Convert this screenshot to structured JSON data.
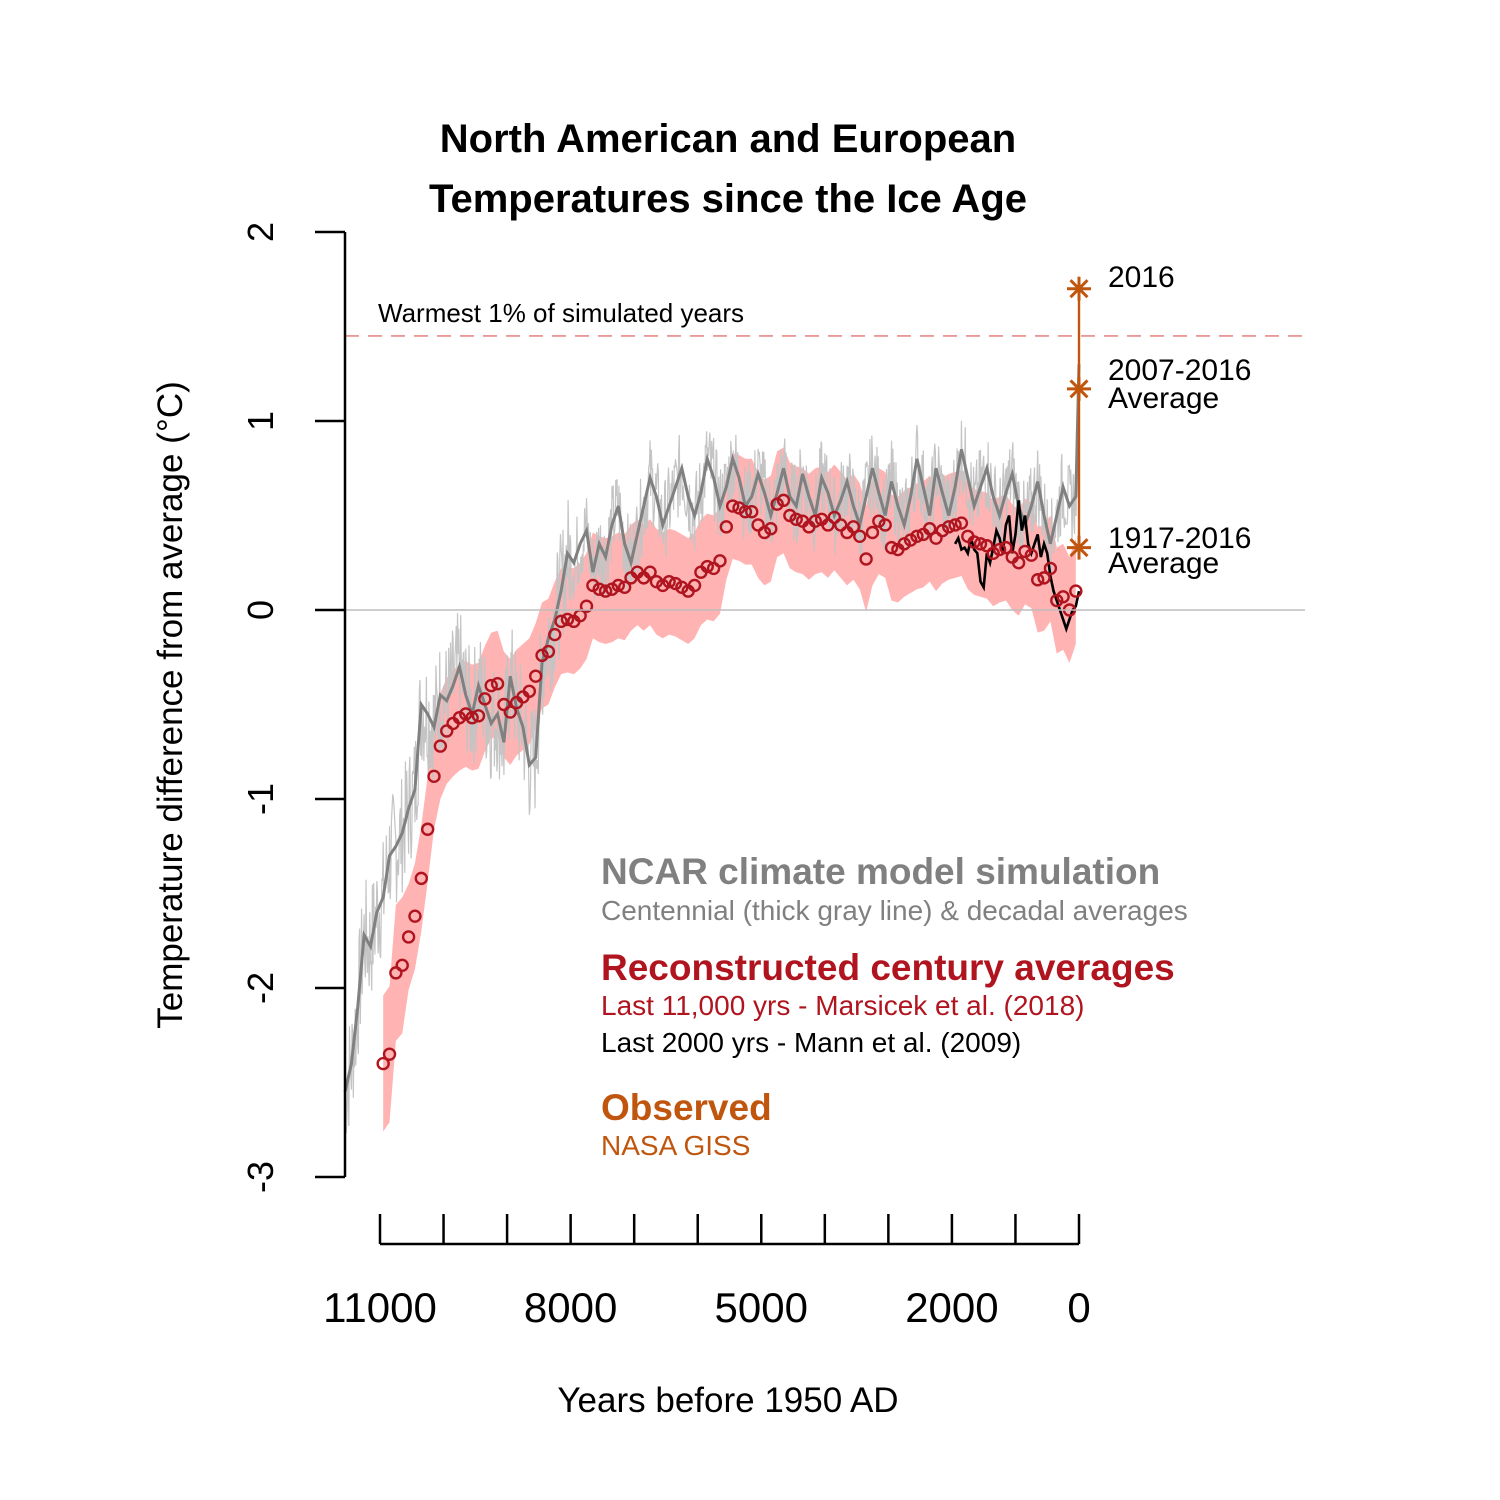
{
  "colors": {
    "model": "#808080",
    "model_decadal": "#c4c4c4",
    "recon": "#b0151f",
    "recon_band": "#ffb3b3",
    "mann": "#000000",
    "observed": "#c0560e",
    "threshold": "#e88a8a",
    "zero_line": "#bdbdbd"
  },
  "chart_data": {
    "type": "line",
    "title_lines": [
      "North American and European",
      "Temperatures since the Ice Age"
    ],
    "xlabel": "Years before 1950 AD",
    "ylabel": "Temperature difference from average (°C)",
    "x_reversed": true,
    "xlim": [
      11000,
      0
    ],
    "ylim": [
      -3,
      2
    ],
    "x_ticks": [
      11000,
      10000,
      9000,
      8000,
      7000,
      6000,
      5000,
      4000,
      3000,
      2000,
      1000,
      0
    ],
    "x_tick_labels": [
      "11000",
      "8000",
      "5000",
      "2000",
      "0"
    ],
    "x_tick_label_values": [
      11000,
      8000,
      5000,
      2000,
      0
    ],
    "y_ticks": [
      -3,
      -2,
      -1,
      0,
      1,
      2
    ],
    "y_tick_labels": [
      "-3",
      "-2",
      "-1",
      "0",
      "1",
      "2"
    ],
    "reference_lines": [
      {
        "y": 1.45,
        "style": "dashed",
        "label": "Warmest 1% of simulated years"
      },
      {
        "y": 0,
        "style": "solid",
        "label": ""
      }
    ],
    "series": [
      {
        "name": "NCAR climate model simulation",
        "kind": "centennial",
        "x": [
          11550,
          11450,
          11350,
          11250,
          11150,
          11050,
          10950,
          10850,
          10750,
          10650,
          10550,
          10450,
          10350,
          10250,
          10150,
          10050,
          9950,
          9850,
          9750,
          9650,
          9550,
          9450,
          9350,
          9250,
          9150,
          9050,
          8950,
          8850,
          8750,
          8650,
          8550,
          8450,
          8350,
          8250,
          8150,
          8050,
          7950,
          7850,
          7750,
          7650,
          7550,
          7450,
          7350,
          7250,
          7150,
          7050,
          6950,
          6850,
          6750,
          6650,
          6550,
          6450,
          6350,
          6250,
          6150,
          6050,
          5950,
          5850,
          5750,
          5650,
          5550,
          5450,
          5350,
          5250,
          5150,
          5050,
          4950,
          4850,
          4750,
          4650,
          4550,
          4450,
          4350,
          4250,
          4150,
          4050,
          3950,
          3850,
          3750,
          3650,
          3550,
          3450,
          3350,
          3250,
          3150,
          3050,
          2950,
          2850,
          2750,
          2650,
          2550,
          2450,
          2350,
          2250,
          2150,
          2050,
          1950,
          1850,
          1750,
          1650,
          1550,
          1450,
          1350,
          1250,
          1150,
          1050,
          950,
          850,
          750,
          650,
          550,
          450,
          350,
          250,
          150,
          50,
          0
        ],
        "values": [
          -2.55,
          -2.4,
          -2.1,
          -1.72,
          -1.78,
          -1.6,
          -1.52,
          -1.3,
          -1.25,
          -1.18,
          -1.05,
          -0.95,
          -0.5,
          -0.55,
          -0.62,
          -0.45,
          -0.48,
          -0.4,
          -0.3,
          -0.45,
          -0.55,
          -0.4,
          -0.5,
          -0.6,
          -0.55,
          -0.7,
          -0.35,
          -0.52,
          -0.62,
          -0.82,
          -0.78,
          -0.28,
          -0.15,
          -0.05,
          0.1,
          0.3,
          0.25,
          0.35,
          0.42,
          0.2,
          0.35,
          0.28,
          0.45,
          0.55,
          0.35,
          0.25,
          0.4,
          0.55,
          0.7,
          0.6,
          0.45,
          0.55,
          0.65,
          0.75,
          0.6,
          0.5,
          0.62,
          0.8,
          0.7,
          0.55,
          0.65,
          0.8,
          0.7,
          0.55,
          0.6,
          0.72,
          0.62,
          0.5,
          0.62,
          0.75,
          0.6,
          0.55,
          0.72,
          0.6,
          0.5,
          0.7,
          0.62,
          0.5,
          0.58,
          0.68,
          0.55,
          0.45,
          0.6,
          0.75,
          0.62,
          0.5,
          0.68,
          0.55,
          0.45,
          0.6,
          0.8,
          0.65,
          0.5,
          0.75,
          0.62,
          0.5,
          0.65,
          0.85,
          0.7,
          0.55,
          0.65,
          0.75,
          0.6,
          0.5,
          0.62,
          0.72,
          0.55,
          0.45,
          0.55,
          0.68,
          0.5,
          0.35,
          0.5,
          0.65,
          0.55,
          0.6,
          1.3
        ]
      },
      {
        "name": "Last 11,000 yrs - Marsicek et al. (2018)",
        "kind": "reconstruction",
        "x": [
          10950,
          10850,
          10750,
          10650,
          10550,
          10450,
          10350,
          10250,
          10150,
          10050,
          9950,
          9850,
          9750,
          9650,
          9550,
          9450,
          9350,
          9250,
          9150,
          9050,
          8950,
          8850,
          8750,
          8650,
          8550,
          8450,
          8350,
          8250,
          8150,
          8050,
          7950,
          7850,
          7750,
          7650,
          7550,
          7450,
          7350,
          7250,
          7150,
          7050,
          6950,
          6850,
          6750,
          6650,
          6550,
          6450,
          6350,
          6250,
          6150,
          6050,
          5950,
          5850,
          5750,
          5650,
          5550,
          5450,
          5350,
          5250,
          5150,
          5050,
          4950,
          4850,
          4750,
          4650,
          4550,
          4450,
          4350,
          4250,
          4150,
          4050,
          3950,
          3850,
          3750,
          3650,
          3550,
          3450,
          3350,
          3250,
          3150,
          3050,
          2950,
          2850,
          2750,
          2650,
          2550,
          2450,
          2350,
          2250,
          2150,
          2050,
          1950,
          1850,
          1750,
          1650,
          1550,
          1450,
          1350,
          1250,
          1150,
          1050,
          950,
          850,
          750,
          650,
          550,
          450,
          350,
          250,
          150,
          50
        ],
        "values": [
          -2.4,
          -2.35,
          -1.92,
          -1.88,
          -1.73,
          -1.62,
          -1.42,
          -1.16,
          -0.88,
          -0.72,
          -0.64,
          -0.6,
          -0.57,
          -0.55,
          -0.57,
          -0.56,
          -0.47,
          -0.4,
          -0.39,
          -0.5,
          -0.54,
          -0.49,
          -0.46,
          -0.43,
          -0.35,
          -0.24,
          -0.22,
          -0.13,
          -0.06,
          -0.05,
          -0.06,
          -0.03,
          0.02,
          0.13,
          0.11,
          0.1,
          0.11,
          0.13,
          0.12,
          0.17,
          0.2,
          0.17,
          0.2,
          0.15,
          0.13,
          0.15,
          0.14,
          0.12,
          0.1,
          0.13,
          0.2,
          0.23,
          0.22,
          0.26,
          0.44,
          0.55,
          0.54,
          0.52,
          0.52,
          0.45,
          0.41,
          0.43,
          0.56,
          0.58,
          0.5,
          0.48,
          0.47,
          0.44,
          0.47,
          0.48,
          0.45,
          0.49,
          0.45,
          0.41,
          0.44,
          0.39,
          0.27,
          0.41,
          0.47,
          0.45,
          0.33,
          0.32,
          0.35,
          0.37,
          0.39,
          0.4,
          0.43,
          0.38,
          0.42,
          0.44,
          0.45,
          0.46,
          0.39,
          0.36,
          0.35,
          0.34,
          0.3,
          0.32,
          0.33,
          0.28,
          0.25,
          0.31,
          0.29,
          0.16,
          0.17,
          0.22,
          0.05,
          0.07,
          0.0,
          0.1
        ]
      },
      {
        "name": "Last 2000 yrs - Mann et al. (2009)",
        "kind": "line",
        "x": [
          1950,
          1900,
          1850,
          1800,
          1750,
          1700,
          1650,
          1600,
          1550,
          1500,
          1450,
          1400,
          1350,
          1300,
          1250,
          1200,
          1150,
          1100,
          1050,
          1000,
          950,
          900,
          850,
          800,
          750,
          700,
          650,
          600,
          550,
          500,
          450,
          400,
          350,
          300,
          250,
          200,
          150,
          100,
          50,
          0
        ],
        "values": [
          0.35,
          0.38,
          0.32,
          0.33,
          0.3,
          0.38,
          0.32,
          0.3,
          0.15,
          0.12,
          0.3,
          0.25,
          0.33,
          0.42,
          0.38,
          0.3,
          0.45,
          0.5,
          0.3,
          0.4,
          0.58,
          0.42,
          0.5,
          0.35,
          0.3,
          0.35,
          0.4,
          0.28,
          0.35,
          0.3,
          0.18,
          0.1,
          0.05,
          0.0,
          -0.05,
          -0.1,
          -0.05,
          0.0,
          0.02,
          0.1
        ]
      },
      {
        "name": "NASA GISS",
        "kind": "observed",
        "points": [
          {
            "x": 0,
            "y": 0.33,
            "label": "1917-2016 Average"
          },
          {
            "x": 0,
            "y": 1.17,
            "label": "2007-2016 Average"
          },
          {
            "x": 0,
            "y": 1.7,
            "label": "2016"
          }
        ]
      }
    ],
    "legend": {
      "model_title": "NCAR climate model simulation",
      "model_sub": "Centennial (thick gray line) & decadal averages",
      "recon_title": "Reconstructed century averages",
      "recon_sub1": "Last 11,000 yrs - Marsicek et al. (2018)",
      "recon_sub2": "Last 2000 yrs - Mann et al. (2009)",
      "obs_title": "Observed",
      "obs_sub": "NASA GISS"
    }
  }
}
